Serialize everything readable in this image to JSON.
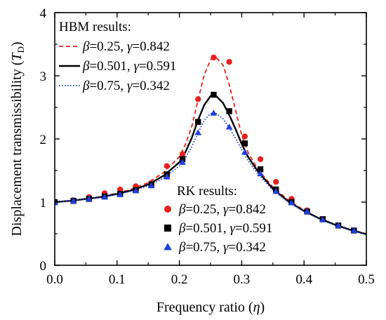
{
  "chart_data": {
    "type": "line",
    "xlabel": "Frequency ratio (",
    "xlabel_symbol": "η",
    "xlabel_close": ")",
    "ylabel": "Displacement transmissibility (",
    "ylabel_symbol": "T",
    "ylabel_sub": "D",
    "ylabel_close": ")",
    "xlim": [
      0.0,
      0.5
    ],
    "ylim": [
      0,
      4
    ],
    "xticks": [
      "0.0",
      "0.1",
      "0.2",
      "0.3",
      "0.4",
      "0.5"
    ],
    "yticks": [
      "0",
      "1",
      "2",
      "3",
      "4"
    ],
    "grid": false,
    "legend_hbm": {
      "heading": "HBM results:",
      "entries": [
        {
          "beta": "β",
          "beta_val": "=0.25, ",
          "gamma": "γ",
          "gamma_val": "=0.842"
        },
        {
          "beta": "β",
          "beta_val": "=0.501, ",
          "gamma": "γ",
          "gamma_val": "=0.591"
        },
        {
          "beta": "β",
          "beta_val": "=0.75, ",
          "gamma": "γ",
          "gamma_val": "=0.342"
        }
      ]
    },
    "legend_rk": {
      "heading": "RK results:",
      "entries": [
        {
          "beta": "β",
          "beta_val": "=0.25, ",
          "gamma": "γ",
          "gamma_val": "=0.842"
        },
        {
          "beta": "β",
          "beta_val": "=0.501, ",
          "gamma": "γ",
          "gamma_val": "=0.591"
        },
        {
          "beta": "β",
          "beta_val": "=0.75, ",
          "gamma": "γ",
          "gamma_val": "=0.342"
        }
      ]
    },
    "lines": [
      {
        "style": "dashed",
        "color": "#e8201e",
        "x": [
          0.0,
          0.025,
          0.05,
          0.075,
          0.1,
          0.125,
          0.15,
          0.175,
          0.2,
          0.21,
          0.22,
          0.23,
          0.24,
          0.25,
          0.255,
          0.26,
          0.27,
          0.28,
          0.29,
          0.3,
          0.31,
          0.325,
          0.35,
          0.375,
          0.4,
          0.425,
          0.45,
          0.475,
          0.5
        ],
        "y": [
          1.0,
          1.02,
          1.05,
          1.09,
          1.14,
          1.21,
          1.31,
          1.47,
          1.72,
          1.92,
          2.2,
          2.62,
          3.02,
          3.25,
          3.29,
          3.28,
          3.17,
          2.86,
          2.46,
          2.06,
          1.79,
          1.53,
          1.24,
          1.03,
          0.87,
          0.74,
          0.64,
          0.56,
          0.5
        ]
      },
      {
        "style": "solid",
        "color": "#000000",
        "x": [
          0.0,
          0.025,
          0.05,
          0.075,
          0.1,
          0.125,
          0.15,
          0.175,
          0.2,
          0.21,
          0.22,
          0.23,
          0.24,
          0.25,
          0.255,
          0.26,
          0.27,
          0.28,
          0.29,
          0.3,
          0.31,
          0.325,
          0.35,
          0.375,
          0.4,
          0.425,
          0.45,
          0.475,
          0.5
        ],
        "y": [
          1.0,
          1.02,
          1.05,
          1.08,
          1.13,
          1.19,
          1.28,
          1.42,
          1.63,
          1.8,
          2.02,
          2.3,
          2.54,
          2.68,
          2.7,
          2.67,
          2.57,
          2.38,
          2.16,
          1.92,
          1.72,
          1.5,
          1.21,
          1.01,
          0.86,
          0.74,
          0.64,
          0.56,
          0.49
        ]
      },
      {
        "style": "dotted",
        "color": "#1f3fe0",
        "x": [
          0.0,
          0.025,
          0.05,
          0.075,
          0.1,
          0.125,
          0.15,
          0.175,
          0.2,
          0.21,
          0.22,
          0.23,
          0.24,
          0.25,
          0.255,
          0.26,
          0.27,
          0.28,
          0.29,
          0.3,
          0.31,
          0.325,
          0.35,
          0.375,
          0.4,
          0.425,
          0.45,
          0.475,
          0.5
        ],
        "y": [
          1.0,
          1.02,
          1.05,
          1.08,
          1.12,
          1.18,
          1.26,
          1.38,
          1.57,
          1.71,
          1.88,
          2.1,
          2.3,
          2.4,
          2.42,
          2.4,
          2.32,
          2.18,
          2.01,
          1.83,
          1.66,
          1.46,
          1.19,
          1.0,
          0.85,
          0.73,
          0.63,
          0.55,
          0.49
        ]
      }
    ],
    "markers": [
      {
        "shape": "circle",
        "color": "#e8201e",
        "x": [
          0.0,
          0.03,
          0.055,
          0.08,
          0.105,
          0.13,
          0.155,
          0.18,
          0.205,
          0.23,
          0.255,
          0.28,
          0.305,
          0.33,
          0.355,
          0.38,
          0.405,
          0.43,
          0.455,
          0.48
        ],
        "y": [
          1.0,
          1.03,
          1.08,
          1.14,
          1.2,
          1.25,
          1.3,
          1.57,
          1.76,
          2.63,
          3.29,
          3.22,
          2.04,
          1.68,
          1.32,
          1.05,
          0.87,
          0.73,
          0.63,
          0.55
        ]
      },
      {
        "shape": "square",
        "color": "#000000",
        "x": [
          0.0,
          0.03,
          0.055,
          0.08,
          0.105,
          0.13,
          0.155,
          0.18,
          0.205,
          0.23,
          0.255,
          0.28,
          0.305,
          0.33,
          0.355,
          0.38,
          0.405,
          0.43,
          0.455,
          0.48
        ],
        "y": [
          1.0,
          1.02,
          1.05,
          1.09,
          1.13,
          1.19,
          1.28,
          1.44,
          1.68,
          2.27,
          2.7,
          2.44,
          1.93,
          1.52,
          1.2,
          1.0,
          0.85,
          0.73,
          0.63,
          0.55
        ]
      },
      {
        "shape": "triangle",
        "color": "#1f3fe0",
        "x": [
          0.0,
          0.03,
          0.055,
          0.08,
          0.105,
          0.13,
          0.155,
          0.18,
          0.205,
          0.23,
          0.255,
          0.28,
          0.305,
          0.33,
          0.355,
          0.38,
          0.405,
          0.43,
          0.455,
          0.48
        ],
        "y": [
          1.0,
          1.02,
          1.05,
          1.08,
          1.12,
          1.18,
          1.26,
          1.4,
          1.63,
          2.1,
          2.41,
          2.19,
          1.79,
          1.45,
          1.17,
          0.99,
          0.85,
          0.72,
          0.63,
          0.55
        ]
      }
    ]
  }
}
